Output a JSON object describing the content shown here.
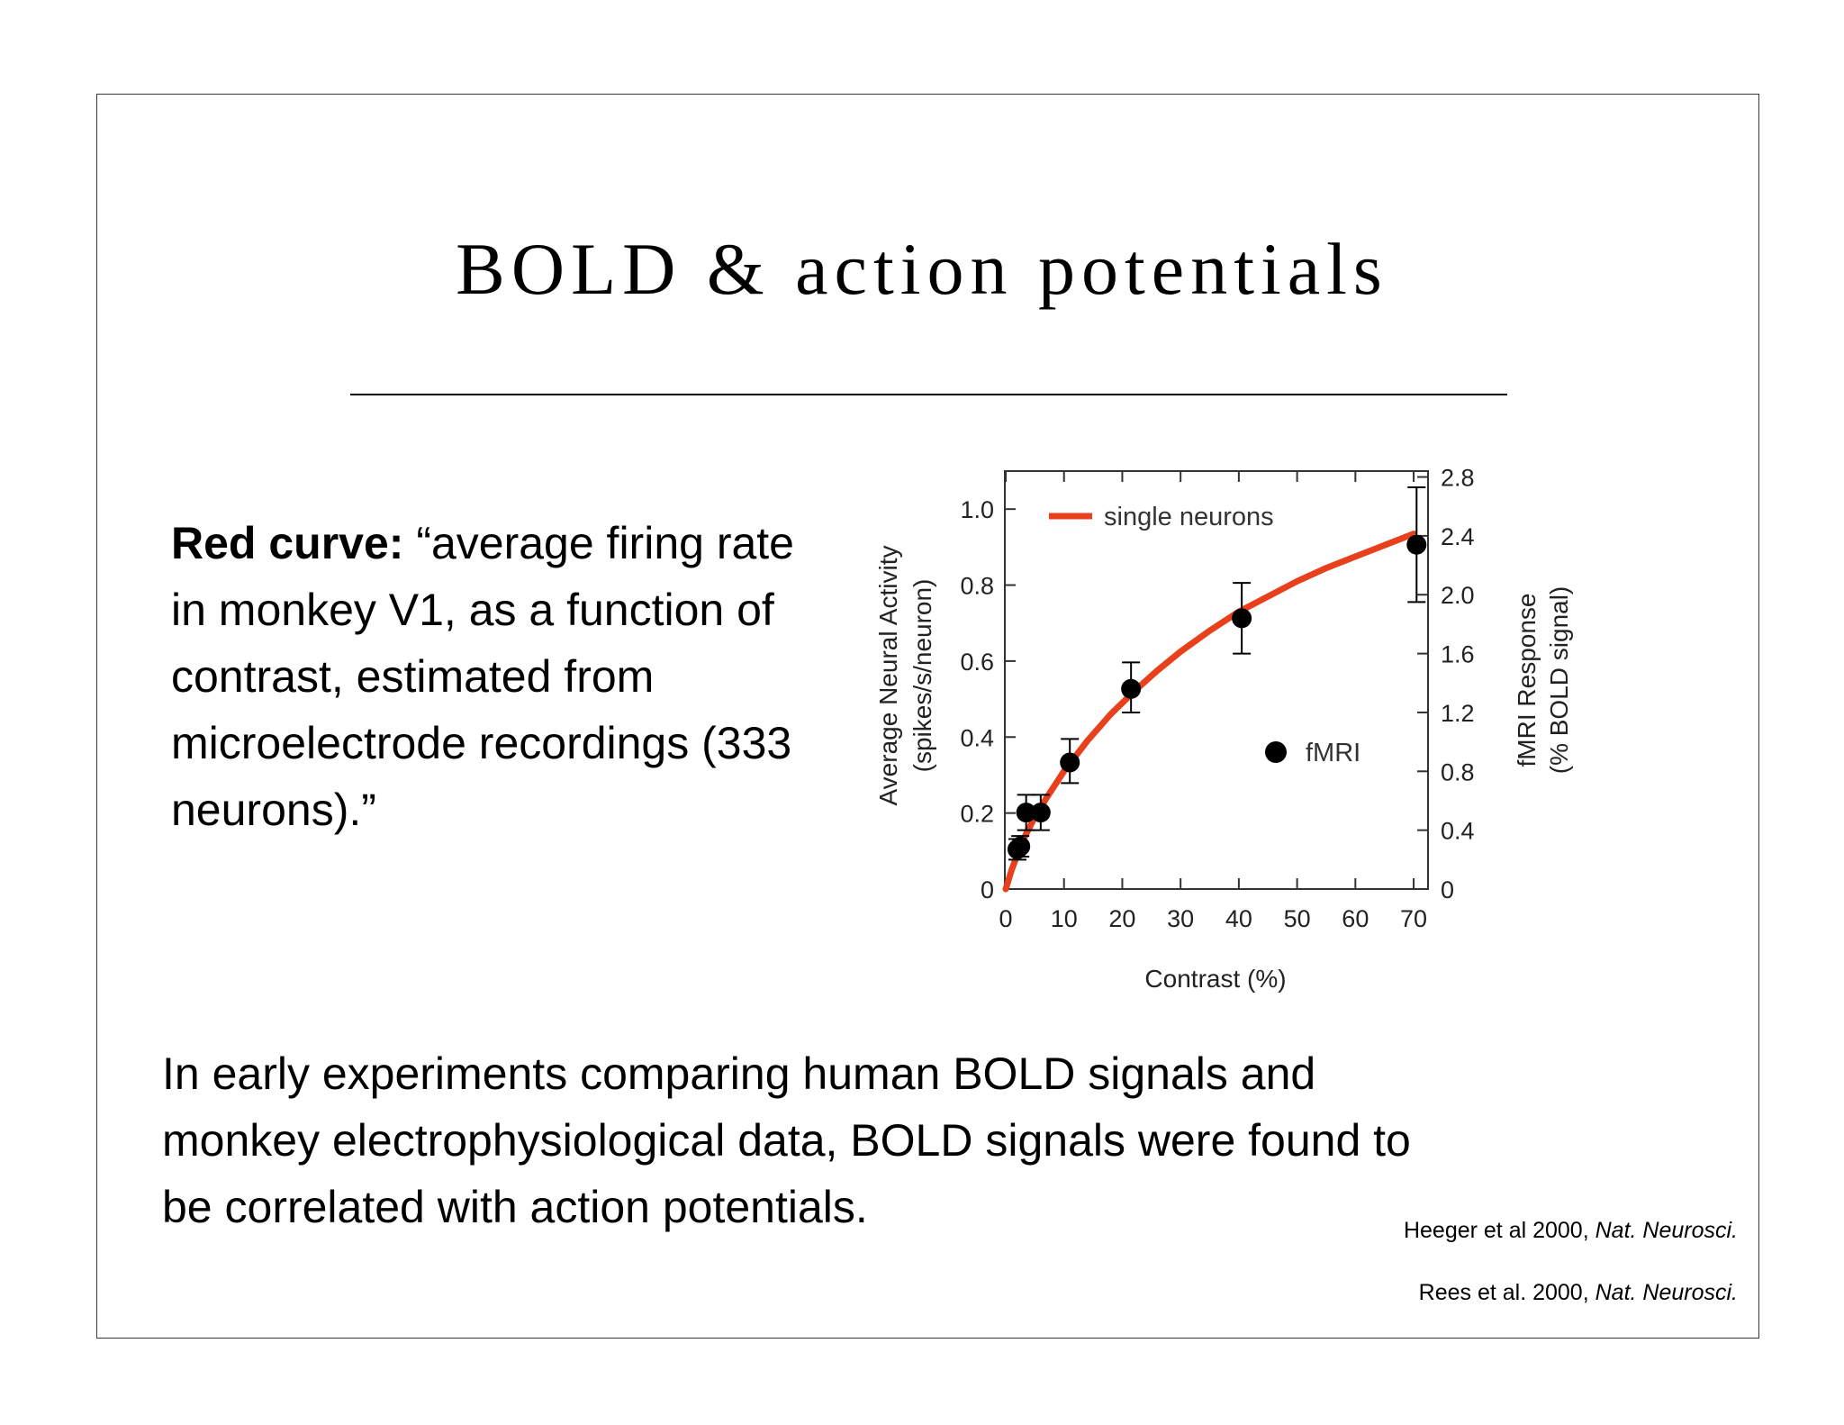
{
  "slide": {
    "title": "BOLD & action potentials",
    "caption_lead": "Red curve:",
    "caption_text": " “average firing rate in monkey V1, as a function of contrast, estimated from microelectrode recordings (333 neurons).”",
    "body_text": "In early experiments comparing human BOLD signals and monkey electrophysiological data, BOLD signals were found to be correlated with action potentials.",
    "references": [
      {
        "text": "Heeger et al 2000, ",
        "journal": "Nat. Neurosci."
      },
      {
        "text": "Rees et al. 2000, ",
        "journal": "Nat. Neurosci."
      }
    ]
  },
  "chart_data": {
    "type": "scatter",
    "xlabel": "Contrast (%)",
    "ylabel_left": [
      "Average Neural Activity",
      "(spikes/s/neuron)"
    ],
    "ylabel_right": [
      "fMRI Response",
      "(% BOLD signal)"
    ],
    "xlim": [
      0,
      72
    ],
    "ylim_left": [
      0,
      1.1
    ],
    "ylim_right": [
      0,
      2.84
    ],
    "x_ticks": [
      0,
      10,
      20,
      30,
      40,
      50,
      60,
      70
    ],
    "x_tick_labels": [
      "0",
      "10",
      "20",
      "30",
      "40",
      "50",
      "60",
      "70"
    ],
    "y_left_ticks": [
      0,
      0.2,
      0.4,
      0.6,
      0.8,
      1.0
    ],
    "y_left_tick_labels": [
      "0",
      "0.2",
      "0.4",
      "0.6",
      "0.8",
      "1.0"
    ],
    "y_right_ticks": [
      0,
      0.4,
      0.8,
      1.2,
      1.6,
      2.0,
      2.4,
      2.8
    ],
    "y_right_tick_labels": [
      "0",
      "0.4",
      "0.8",
      "1.2",
      "1.6",
      "2.0",
      "2.4",
      "2.8"
    ],
    "series": [
      {
        "name": "single neurons",
        "kind": "line",
        "color": "#e8401c",
        "x": [
          0,
          1,
          2,
          3,
          5,
          7,
          10,
          14,
          18,
          22,
          26,
          30,
          35,
          40,
          45,
          50,
          55,
          60,
          65,
          70
        ],
        "y": [
          0,
          0.05,
          0.09,
          0.13,
          0.19,
          0.24,
          0.31,
          0.39,
          0.46,
          0.52,
          0.575,
          0.625,
          0.68,
          0.73,
          0.77,
          0.81,
          0.845,
          0.875,
          0.905,
          0.935
        ]
      },
      {
        "name": "fMRI",
        "kind": "scatter",
        "color": "#000000",
        "axis": "right",
        "x": [
          2,
          2.5,
          3.5,
          6,
          11,
          21.5,
          40.5,
          70.5
        ],
        "y": [
          0.27,
          0.29,
          0.52,
          0.52,
          0.86,
          1.36,
          1.84,
          2.34
        ],
        "err_low": [
          0.07,
          0.07,
          0.12,
          0.12,
          0.14,
          0.16,
          0.24,
          0.39
        ],
        "err_high": [
          0.07,
          0.07,
          0.12,
          0.12,
          0.16,
          0.18,
          0.24,
          0.39
        ]
      }
    ]
  }
}
